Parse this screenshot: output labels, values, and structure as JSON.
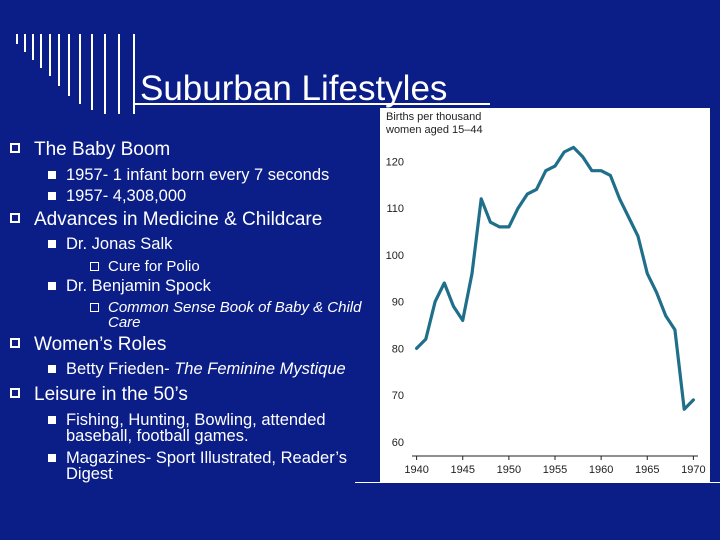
{
  "slide": {
    "title": "Suburban Lifestyles",
    "bullets": {
      "baby_boom": "The Baby Boom",
      "bb_1": "1957- 1 infant born every 7 seconds",
      "bb_2": "1957- 4,308,000",
      "advances": "Advances in Medicine & Childcare",
      "salk": "Dr. Jonas Salk",
      "salk_sub": "Cure for Polio",
      "spock": "Dr. Benjamin Spock",
      "spock_sub": "Common Sense Book of Baby & Child Care",
      "womens_roles": "Women’s Roles",
      "frieden_prefix": "Betty Frieden- ",
      "frieden_book": "The Feminine Mystique",
      "leisure": "Leisure in the 50’s",
      "leisure_1": "Fishing, Hunting, Bowling, attended baseball, football games.",
      "leisure_2": "Magazines- Sport Illustrated, Reader’s Digest"
    }
  },
  "chart_data": {
    "type": "line",
    "title": "",
    "ylabel": "Births per thousand women aged 15–44",
    "xlabel": "",
    "xlim": [
      1939.5,
      1970.5
    ],
    "ylim": [
      57,
      125
    ],
    "xticks": [
      1940,
      1945,
      1950,
      1955,
      1960,
      1965,
      1970
    ],
    "yticks": [
      60,
      70,
      80,
      90,
      100,
      110,
      120
    ],
    "grid": false,
    "line_color": "#1f6f8b",
    "series": [
      {
        "x": [
          1940,
          1941,
          1942,
          1943,
          1944,
          1945,
          1946,
          1947,
          1948,
          1949,
          1950,
          1951,
          1952,
          1953,
          1954,
          1955,
          1956,
          1957,
          1958,
          1959,
          1960,
          1961,
          1962,
          1963,
          1964,
          1965,
          1966,
          1967,
          1968,
          1969,
          1970
        ],
        "y": [
          80,
          82,
          90,
          94,
          89,
          86,
          96,
          112,
          107,
          106,
          106,
          110,
          113,
          114,
          118,
          119,
          122,
          123,
          121,
          118,
          118,
          117,
          112,
          108,
          104,
          96,
          92,
          87,
          84,
          67,
          69
        ]
      }
    ]
  }
}
